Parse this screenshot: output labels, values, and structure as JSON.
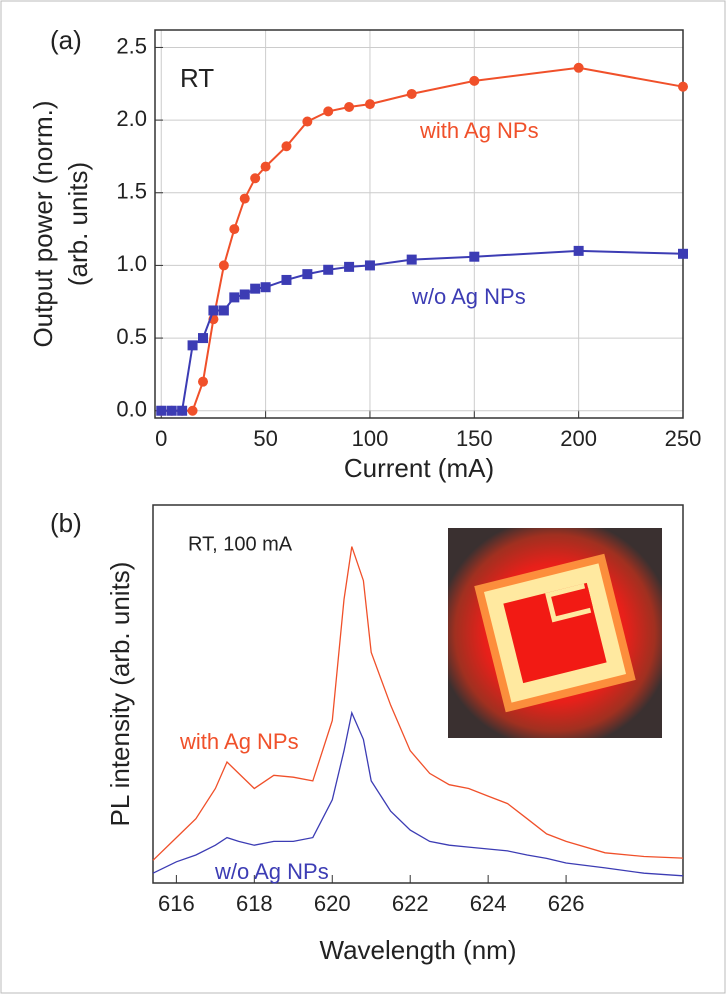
{
  "chart_data": [
    {
      "type": "line",
      "panel": "(a)",
      "annotation": "RT",
      "xlabel": "Current (mA)",
      "ylabel": [
        "Output power (norm.)",
        "(arb. units)"
      ],
      "x": [
        0,
        5,
        10,
        15,
        20,
        25,
        30,
        35,
        40,
        45,
        50,
        60,
        70,
        80,
        90,
        100,
        120,
        150,
        200,
        250
      ],
      "series": [
        {
          "name": "with Ag NPs",
          "color": "#f0502a",
          "marker": "circle",
          "values": [
            0,
            0,
            0,
            0,
            0.2,
            0.63,
            1.0,
            1.25,
            1.46,
            1.6,
            1.68,
            1.82,
            1.99,
            2.06,
            2.09,
            2.11,
            2.18,
            2.27,
            2.36,
            2.23
          ]
        },
        {
          "name": "w/o Ag NPs",
          "color": "#3c3cb4",
          "marker": "square",
          "values": [
            0,
            0,
            0,
            0.45,
            0.5,
            0.69,
            0.69,
            0.78,
            0.8,
            0.84,
            0.85,
            0.9,
            0.94,
            0.97,
            0.99,
            1.0,
            1.04,
            1.06,
            1.1,
            1.08
          ]
        }
      ],
      "xlim": [
        -3,
        250
      ],
      "xticks": [
        0,
        50,
        100,
        150,
        200,
        250
      ],
      "ylim": [
        -0.05,
        2.62
      ],
      "yticks": [
        {
          "value": 0,
          "label": "0.0"
        },
        0.5,
        {
          "value": 1,
          "label": "1.0"
        },
        1.5,
        {
          "value": 2,
          "label": "2.0"
        },
        2.5
      ],
      "grid": true
    },
    {
      "type": "line",
      "panel": "(b)",
      "annotation": "RT, 100 mA",
      "xlabel": "Wavelength (nm)",
      "ylabel": [
        "PL intensity (arb. units)"
      ],
      "x": [
        615.4,
        616,
        616.5,
        617,
        617.3,
        617.6,
        618,
        618.5,
        619,
        619.5,
        620,
        620.3,
        620.5,
        620.8,
        621,
        621.5,
        622,
        622.5,
        623,
        623.5,
        624,
        624.5,
        625,
        625.5,
        626,
        627,
        628,
        629
      ],
      "series": [
        {
          "name": "with Ag NPs",
          "color": "#f0502a",
          "values": [
            0.06,
            0.12,
            0.17,
            0.25,
            0.32,
            0.29,
            0.25,
            0.285,
            0.28,
            0.27,
            0.43,
            0.75,
            0.89,
            0.8,
            0.61,
            0.47,
            0.35,
            0.29,
            0.26,
            0.25,
            0.23,
            0.21,
            0.17,
            0.13,
            0.11,
            0.08,
            0.07,
            0.066
          ]
        },
        {
          "name": "w/o Ag NPs",
          "color": "#3c3cb4",
          "values": [
            0.026,
            0.056,
            0.074,
            0.1,
            0.12,
            0.11,
            0.1,
            0.11,
            0.11,
            0.12,
            0.22,
            0.35,
            0.45,
            0.38,
            0.27,
            0.19,
            0.14,
            0.11,
            0.1,
            0.095,
            0.09,
            0.085,
            0.074,
            0.065,
            0.053,
            0.04,
            0.026,
            0.019
          ]
        }
      ],
      "xlim": [
        615.4,
        629
      ],
      "xticks": [
        616,
        618,
        620,
        622,
        624,
        626
      ],
      "ylim": [
        0,
        1
      ],
      "grid": false
    }
  ]
}
